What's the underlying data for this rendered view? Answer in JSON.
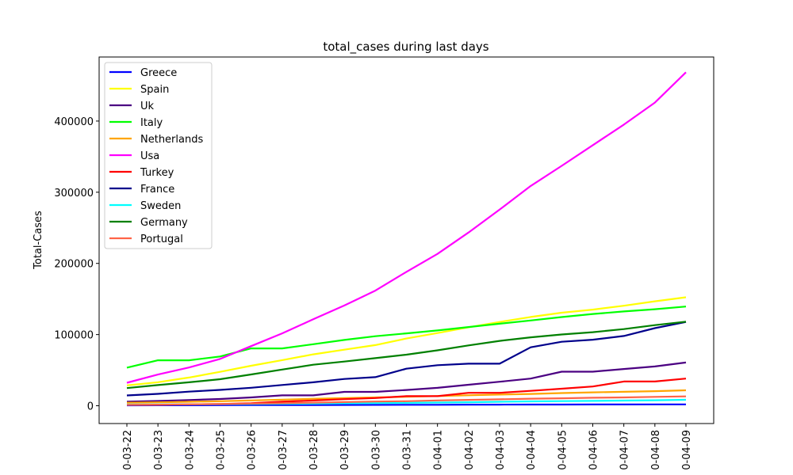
{
  "chart_data": {
    "type": "line",
    "title": "total_cases during last days",
    "xlabel": "",
    "ylabel": "Total-Cases",
    "ylim": [
      -25000,
      490000
    ],
    "yticks": [
      0,
      100000,
      200000,
      300000,
      400000
    ],
    "ytick_labels": [
      "0",
      "100000",
      "200000",
      "300000",
      "400000"
    ],
    "grid": false,
    "legend_position": "top-left",
    "x": [
      "0-03-22",
      "0-03-23",
      "0-03-24",
      "0-03-25",
      "0-03-26",
      "0-03-27",
      "0-03-28",
      "0-03-29",
      "0-03-30",
      "0-03-31",
      "0-04-01",
      "0-04-02",
      "0-04-03",
      "0-04-04",
      "0-04-05",
      "0-04-06",
      "0-04-07",
      "0-04-08",
      "0-04-09"
    ],
    "series": [
      {
        "name": "Greece",
        "color": "#0000ff",
        "values": [
          624,
          695,
          743,
          821,
          892,
          966,
          1061,
          1156,
          1212,
          1314,
          1415,
          1544,
          1613,
          1673,
          1735,
          1755,
          1832,
          1884,
          1955
        ]
      },
      {
        "name": "Spain",
        "color": "#ffff00",
        "values": [
          28572,
          33089,
          39673,
          47610,
          56188,
          64059,
          72248,
          78797,
          85195,
          94417,
          102136,
          110238,
          117710,
          124736,
          130759,
          135032,
          140510,
          146690,
          152446
        ]
      },
      {
        "name": "Uk",
        "color": "#4b0082",
        "values": [
          5683,
          6650,
          8077,
          9529,
          11658,
          14543,
          14543,
          19522,
          19522,
          22141,
          25150,
          29474,
          33718,
          38168,
          47806,
          47806,
          51608,
          55242,
          60733
        ]
      },
      {
        "name": "Italy",
        "color": "#00ff00",
        "values": [
          53578,
          63927,
          63927,
          69176,
          80589,
          80539,
          86498,
          92472,
          97689,
          101739,
          105792,
          110574,
          115242,
          119827,
          124632,
          128948,
          132547,
          135586,
          139422
        ]
      },
      {
        "name": "Netherlands",
        "color": "#ffa500",
        "values": [
          4216,
          4764,
          5560,
          6412,
          7431,
          8603,
          9762,
          10866,
          11750,
          12595,
          13614,
          14697,
          15723,
          16627,
          17851,
          18803,
          19580,
          20549,
          21762
        ]
      },
      {
        "name": "Usa",
        "color": "#ff00ff",
        "values": [
          32276,
          43847,
          53740,
          65778,
          83836,
          101657,
          121478,
          140886,
          161807,
          188172,
          213372,
          243453,
          275586,
          308850,
          337072,
          366114,
          395011,
          425889,
          468566
        ]
      },
      {
        "name": "Turkey",
        "color": "#ff0000",
        "values": [
          1236,
          1529,
          1872,
          2433,
          3629,
          5698,
          7402,
          9217,
          10827,
          13531,
          13531,
          18135,
          18135,
          20921,
          23934,
          27069,
          34109,
          34109,
          38226
        ]
      },
      {
        "name": "France",
        "color": "#00008b",
        "values": [
          14459,
          16689,
          19856,
          22302,
          25233,
          29155,
          32964,
          37575,
          40174,
          52128,
          56989,
          59105,
          59105,
          82165,
          89953,
          92839,
          98010,
          109069,
          117749
        ]
      },
      {
        "name": "Sweden",
        "color": "#00ffff",
        "values": [
          1746,
          1934,
          2046,
          2286,
          2526,
          2840,
          3069,
          3447,
          3700,
          4028,
          4435,
          4947,
          5568,
          6131,
          6443,
          6830,
          7206,
          7693,
          8419
        ]
      },
      {
        "name": "Germany",
        "color": "#008000",
        "values": [
          24873,
          29056,
          32986,
          37323,
          43938,
          50871,
          57695,
          62095,
          66885,
          71808,
          77872,
          84794,
          91159,
          96092,
          100123,
          103374,
          107663,
          113296,
          118181
        ]
      },
      {
        "name": "Portugal",
        "color": "#ff6347",
        "values": [
          1280,
          1600,
          2060,
          2362,
          2995,
          3544,
          4268,
          5170,
          5962,
          6408,
          7443,
          8251,
          9034,
          9886,
          10524,
          11278,
          11730,
          12442,
          13141
        ]
      }
    ]
  }
}
